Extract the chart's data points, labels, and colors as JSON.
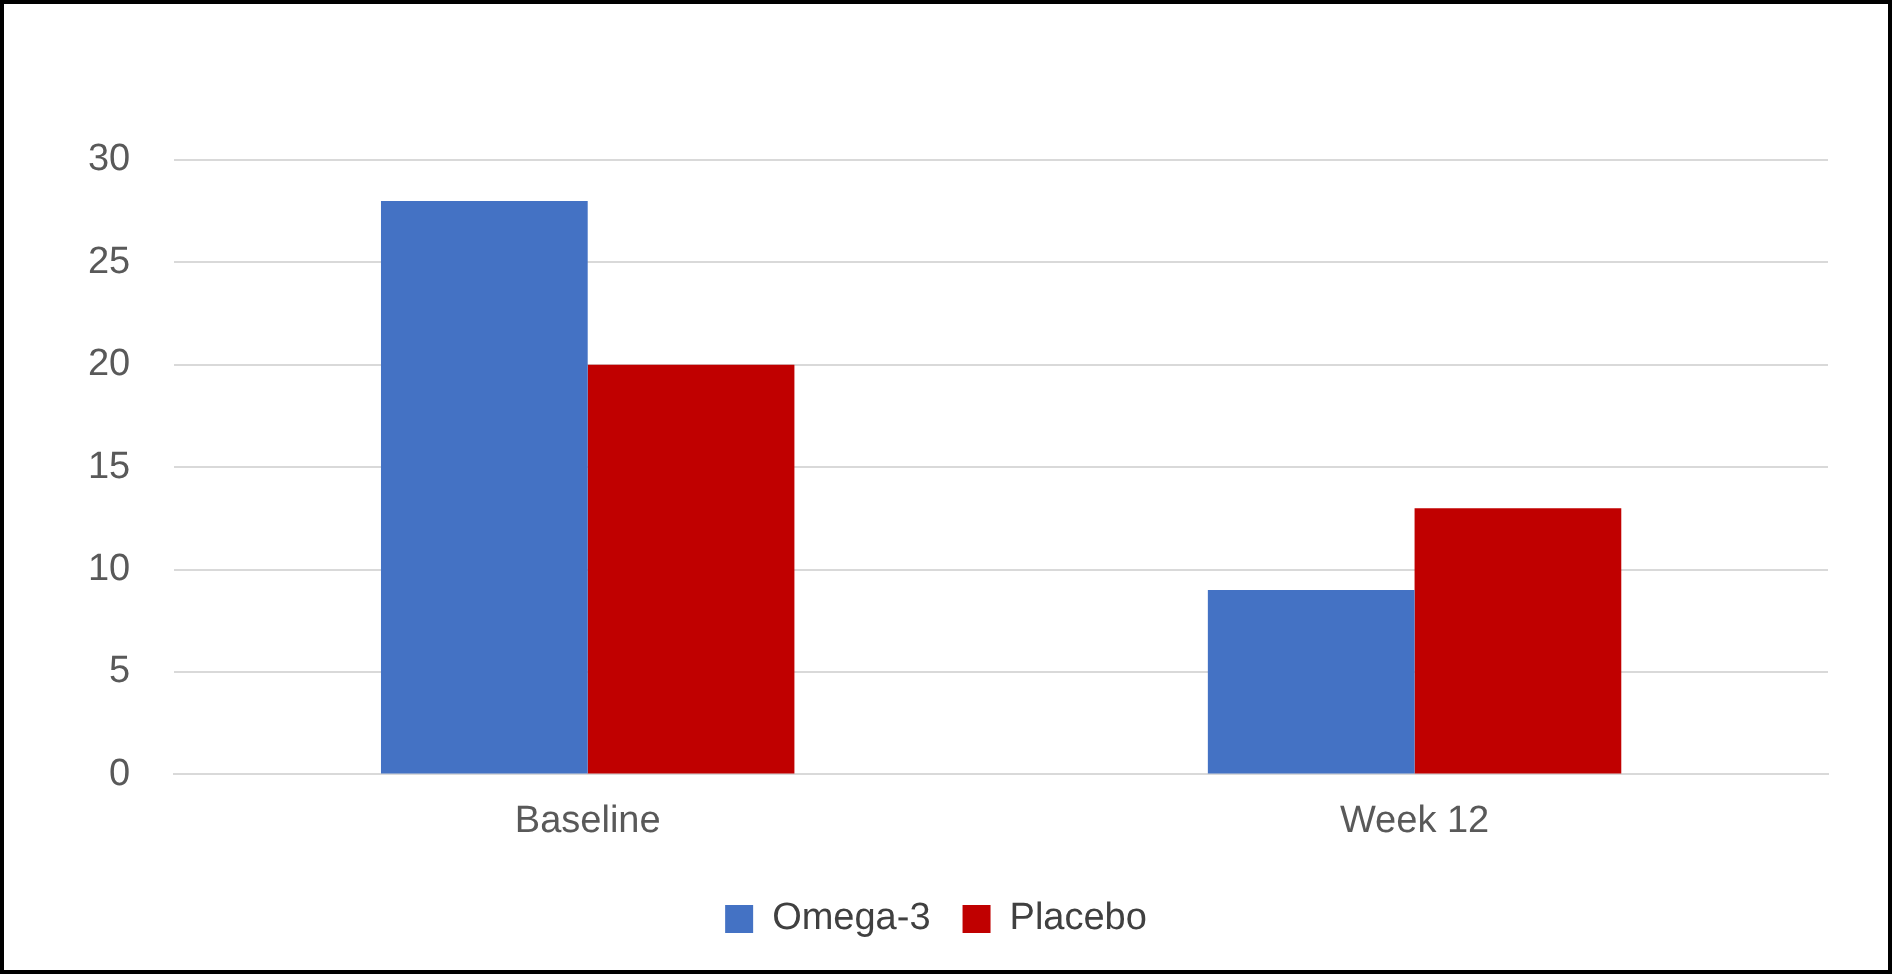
{
  "chart_data": {
    "type": "bar",
    "categories": [
      "Baseline",
      "Week 12"
    ],
    "series": [
      {
        "name": "Omega-3",
        "color": "#4472c4",
        "values": [
          28,
          9
        ]
      },
      {
        "name": "Placebo",
        "color": "#c00000",
        "values": [
          20,
          13
        ]
      }
    ],
    "ylim": [
      0,
      30
    ],
    "yticks": [
      0,
      5,
      10,
      15,
      20,
      25,
      30
    ],
    "grid": "y",
    "legend": "bottom"
  }
}
